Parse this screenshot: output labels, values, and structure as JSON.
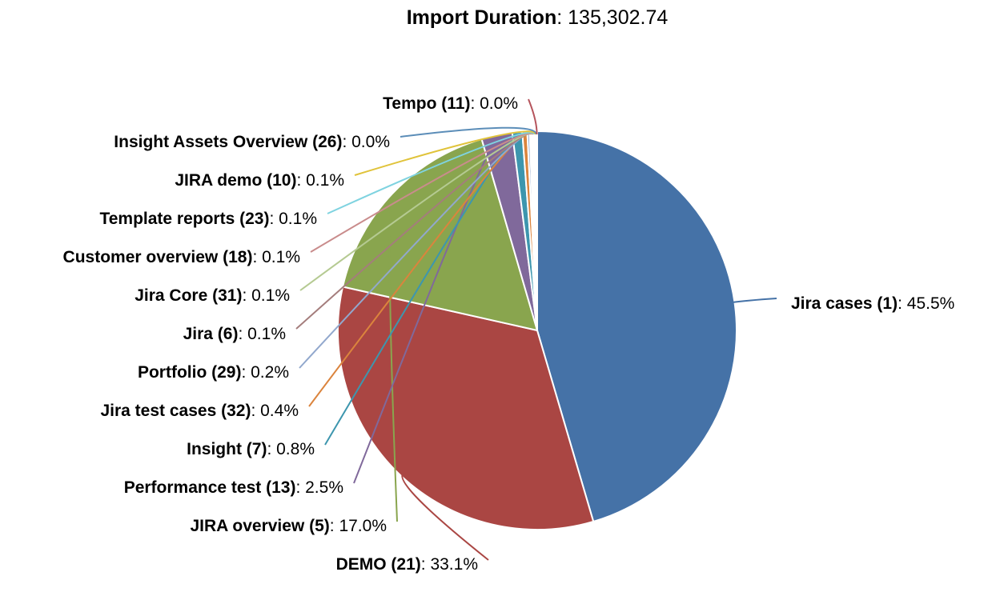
{
  "chart_data": {
    "type": "pie",
    "title_label": "Import Duration",
    "title_value": "135,302.74",
    "slices": [
      {
        "name": "Jira cases (1)",
        "value": 45.5,
        "display": "45.5%",
        "color": "#4572A7"
      },
      {
        "name": "DEMO (21)",
        "value": 33.1,
        "display": "33.1%",
        "color": "#AA4643"
      },
      {
        "name": "JIRA overview (5)",
        "value": 17.0,
        "display": "17.0%",
        "color": "#89A54E"
      },
      {
        "name": "Performance test (13)",
        "value": 2.5,
        "display": "2.5%",
        "color": "#80699B"
      },
      {
        "name": "Insight (7)",
        "value": 0.8,
        "display": "0.8%",
        "color": "#3D96AE"
      },
      {
        "name": "Jira test cases (32)",
        "value": 0.4,
        "display": "0.4%",
        "color": "#DB843D"
      },
      {
        "name": "Portfolio (29)",
        "value": 0.2,
        "display": "0.2%",
        "color": "#92A8CD"
      },
      {
        "name": "Jira (6)",
        "value": 0.1,
        "display": "0.1%",
        "color": "#A47D7C"
      },
      {
        "name": "Jira Core (31)",
        "value": 0.1,
        "display": "0.1%",
        "color": "#B5CA92"
      },
      {
        "name": "Customer overview (18)",
        "value": 0.1,
        "display": "0.1%",
        "color": "#C98C8C"
      },
      {
        "name": "Template reports (23)",
        "value": 0.1,
        "display": "0.1%",
        "color": "#7FD3E0"
      },
      {
        "name": "JIRA demo (10)",
        "value": 0.1,
        "display": "0.1%",
        "color": "#E0C33A"
      },
      {
        "name": "Insight Assets Overview (26)",
        "value": 0.0,
        "display": "0.0%",
        "color": "#5B8DB8"
      },
      {
        "name": "Tempo (11)",
        "value": 0.0,
        "display": "0.0%",
        "color": "#B5545C"
      }
    ]
  }
}
